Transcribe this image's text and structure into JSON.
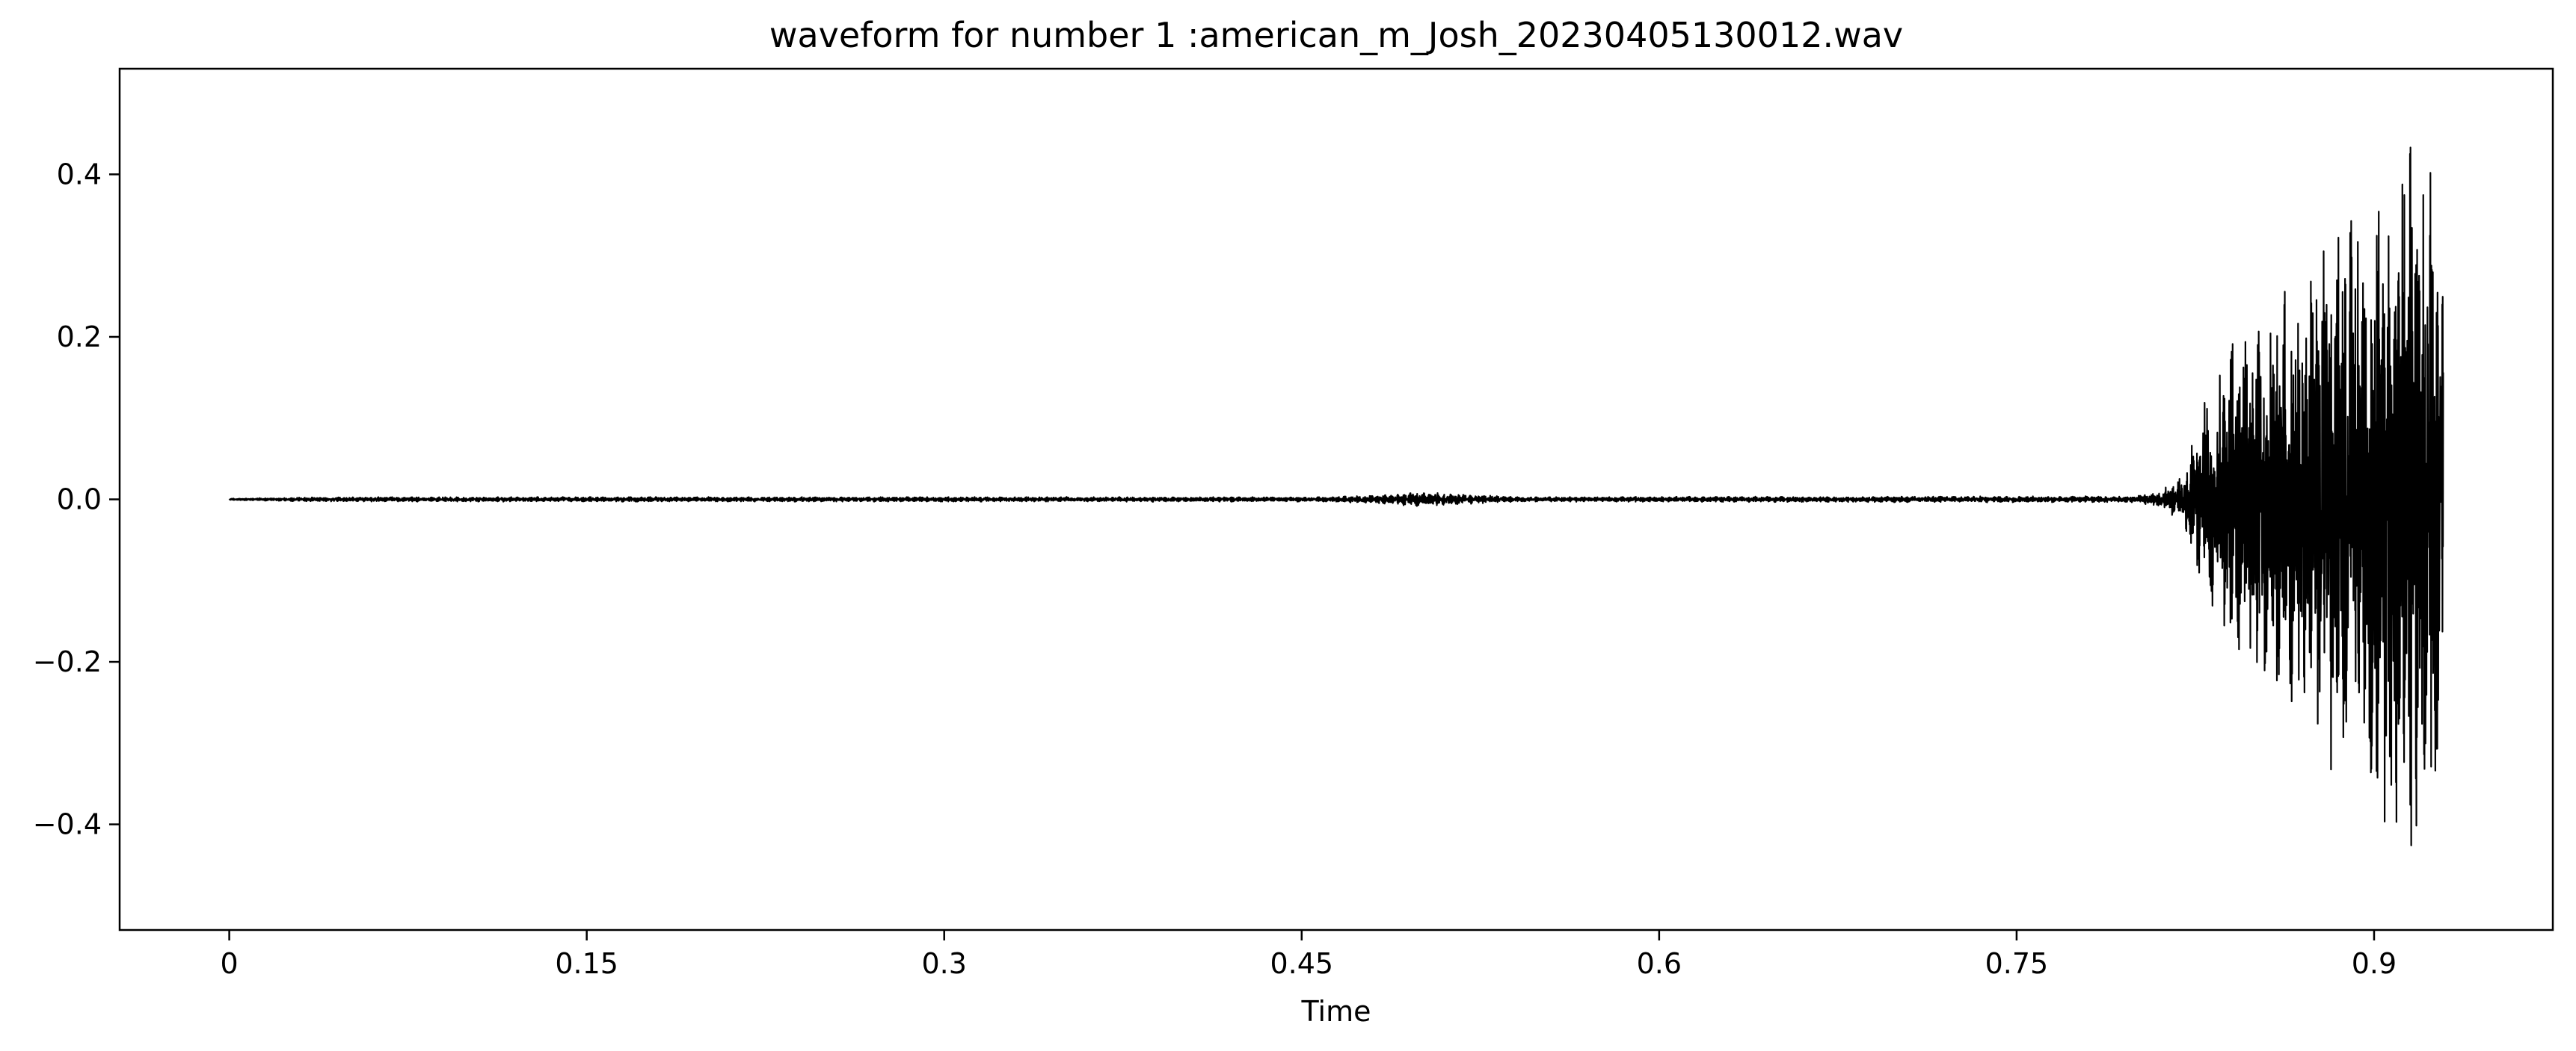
{
  "chart_data": {
    "type": "line",
    "title": "waveform for number 1 :american_m_Josh_20230405130012.wav",
    "xlabel": "Time",
    "ylabel": "",
    "xlim": [
      -0.046,
      0.975
    ],
    "ylim": [
      -0.53,
      0.53
    ],
    "x_ticks": [
      0,
      0.15,
      0.3,
      0.45,
      0.6,
      0.75,
      0.9
    ],
    "x_tick_labels": [
      "0",
      "0.15",
      "0.3",
      "0.45",
      "0.6",
      "0.75",
      "0.9"
    ],
    "y_ticks": [
      0.4,
      0.2,
      0.0,
      -0.2,
      -0.4
    ],
    "y_tick_labels": [
      "0.4",
      "0.2",
      "0.0",
      "−0.2",
      "−0.4"
    ],
    "grid": false,
    "legend": "none",
    "line_color": "#000000",
    "duration": 0.929,
    "series": [
      {
        "values_note_free": true,
        "envelope_time": [
          0,
          0.04,
          0.2,
          0.46,
          0.48,
          0.5,
          0.52,
          0.54,
          0.8,
          0.81,
          0.82,
          0.83,
          0.84,
          0.86,
          0.88,
          0.9,
          0.91,
          0.92,
          0.929
        ],
        "envelope_amp": [
          0.001,
          0.003,
          0.003,
          0.003,
          0.005,
          0.009,
          0.006,
          0.003,
          0.004,
          0.01,
          0.03,
          0.14,
          0.2,
          0.25,
          0.34,
          0.38,
          0.48,
          0.45,
          0.42
        ]
      }
    ]
  }
}
